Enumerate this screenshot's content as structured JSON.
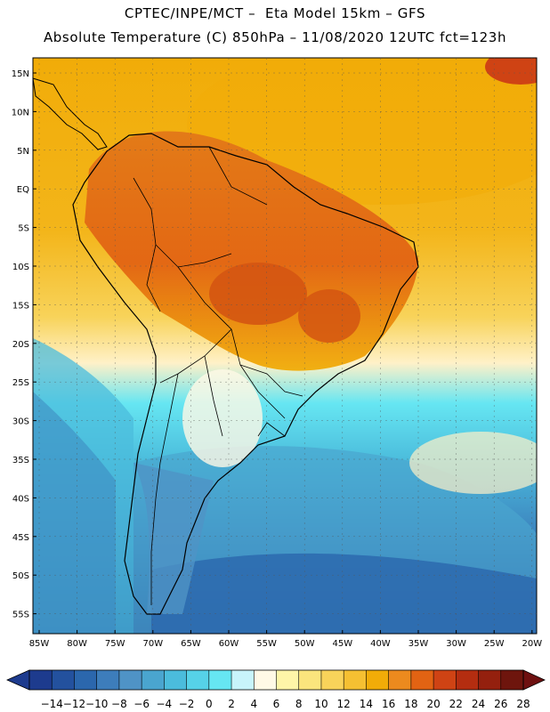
{
  "header": {
    "line1": "CPTEC/INPE/MCT –  Eta Model 15km – GFS",
    "line2": "Absolute Temperature (C) 850hPa – 11/08/2020 12UTC fct=123h"
  },
  "map": {
    "region": "South America",
    "lat_labels": [
      "15N",
      "10N",
      "5N",
      "EQ",
      "5S",
      "10S",
      "15S",
      "20S",
      "25S",
      "30S",
      "35S",
      "40S",
      "45S",
      "50S",
      "55S"
    ],
    "lon_labels": [
      "85W",
      "80W",
      "75W",
      "70W",
      "65W",
      "60W",
      "55W",
      "50W",
      "45W",
      "40W",
      "35W",
      "30W",
      "25W",
      "20W"
    ]
  },
  "colorbar": {
    "labels": [
      "-14",
      "-12",
      "-10",
      "-8",
      "-6",
      "-4",
      "-2",
      "0",
      "2",
      "4",
      "6",
      "8",
      "10",
      "12",
      "14",
      "16",
      "18",
      "20",
      "22",
      "24",
      "26",
      "28"
    ],
    "colors": [
      "#1d3b8e",
      "#23519e",
      "#2b67ad",
      "#3d7dbb",
      "#4f93c6",
      "#4aa5cf",
      "#4bbcdc",
      "#56d2e8",
      "#66e6f2",
      "#c8f4fb",
      "#fff9e6",
      "#fef5a8",
      "#fbe57d",
      "#f8d35a",
      "#f5c032",
      "#f1ac08",
      "#ec8a1e",
      "#e26313",
      "#cf4314",
      "#b42d10",
      "#94200e",
      "#6e150d"
    ],
    "under_color": "#1d3b8e",
    "over_color": "#6e1010"
  }
}
